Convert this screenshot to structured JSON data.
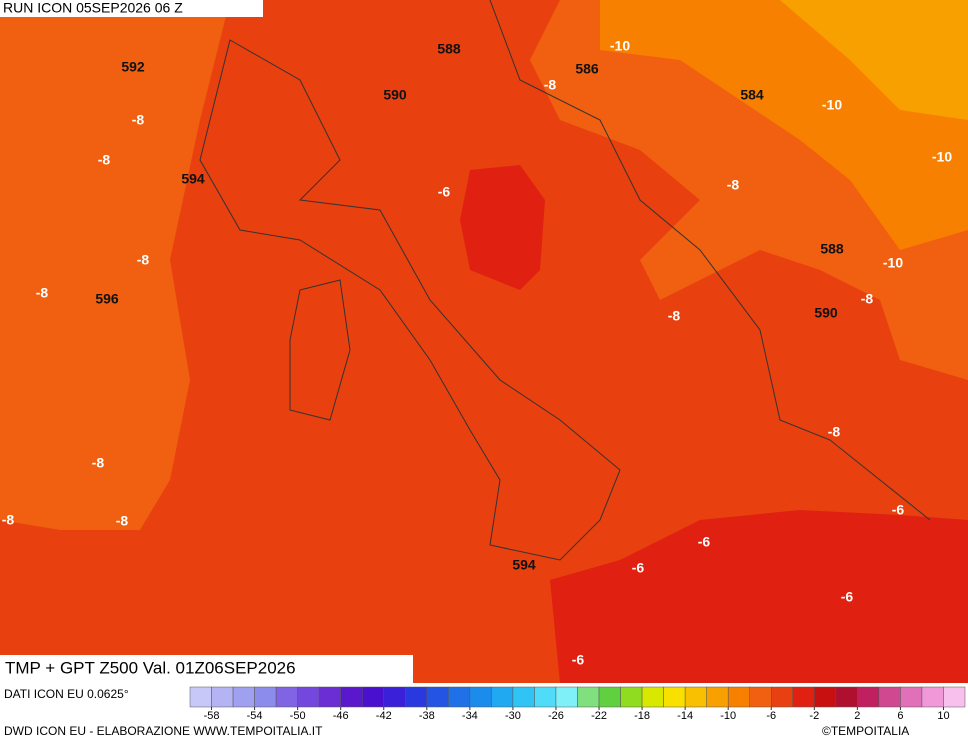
{
  "header": {
    "title": "RUN ICON 05SEP2026 06 Z"
  },
  "map": {
    "title": "TMP + GPT Z500 Val. 01Z06SEP2026",
    "gpt_labels": [
      592,
      588,
      586,
      590,
      584,
      594,
      588,
      596,
      590,
      594
    ],
    "tmp_labels": [
      -10,
      -8,
      -10,
      -8,
      -10,
      -8,
      -6,
      -8,
      -8,
      -10,
      -8,
      -8,
      -8,
      -8,
      -8,
      -8,
      -8,
      -6,
      -6,
      -6,
      -6,
      -6
    ]
  },
  "legend": {
    "source": "DATI ICON EU 0.0625°",
    "ticks": [
      -58,
      -54,
      -50,
      -46,
      -42,
      -38,
      -34,
      -30,
      -26,
      -22,
      -18,
      -14,
      -10,
      -6,
      -2,
      2,
      6,
      10
    ],
    "colors": [
      "#c8c8f8",
      "#b4b4f4",
      "#a0a0f0",
      "#8c8cec",
      "#8064e4",
      "#7448dc",
      "#6a2ed4",
      "#5a18cc",
      "#4a10d0",
      "#3a20d8",
      "#2a38e0",
      "#2454e4",
      "#2070e8",
      "#1c8cec",
      "#20a8f0",
      "#30c4f4",
      "#50dcf8",
      "#80f0f8",
      "#80e080",
      "#60d040",
      "#90dc20",
      "#d8e800",
      "#f8e000",
      "#f8c000",
      "#f8a000",
      "#f88000",
      "#f06010",
      "#e84010",
      "#e02010",
      "#c81010",
      "#b01030",
      "#c02060",
      "#d04890",
      "#e070b8",
      "#f098d8",
      "#f8c0ec"
    ],
    "credit": "DWD ICON EU - ELABORAZIONE WWW.TEMPOITALIA.IT",
    "copyright": "©TEMPOITALIA"
  }
}
